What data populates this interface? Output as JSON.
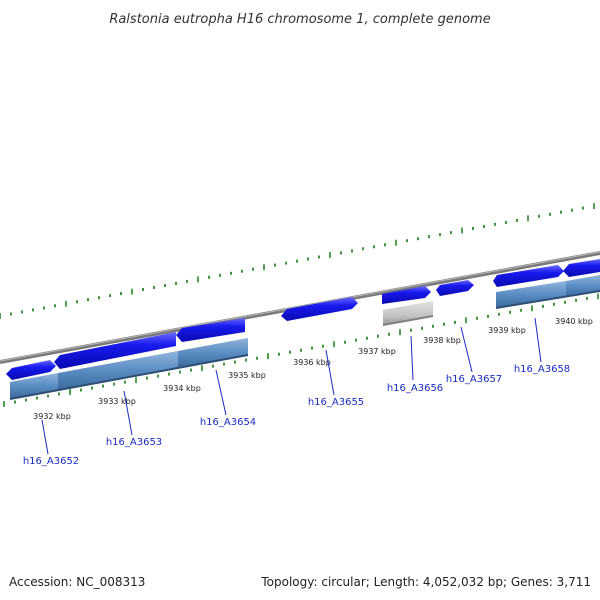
{
  "title": "Ralstonia eutropha H16 chromosome 1, complete genome",
  "footer": {
    "accession": "Accession: NC_008313",
    "summary": "Topology: circular; Length: 4,052,032 bp; Genes: 3,711"
  },
  "ruler_labels": [
    "3932 kbp",
    "3933 kbp",
    "3934 kbp",
    "3935 kbp",
    "3936 kbp",
    "3937 kbp",
    "3938 kbp",
    "3939 kbp",
    "3940 kbp"
  ],
  "genes": [
    "h16_A3652",
    "h16_A3653",
    "h16_A3654",
    "h16_A3655",
    "h16_A3656",
    "h16_A3657",
    "h16_A3658"
  ],
  "colors": {
    "gene_blue": "#1010e8",
    "cds_steel": "#4f7fb5",
    "pseudo_gray": "#c4c4c4",
    "backbone": "#8a8a8a",
    "tick_green": "#2a8a2a",
    "gene_label": "#1a2bbf"
  }
}
